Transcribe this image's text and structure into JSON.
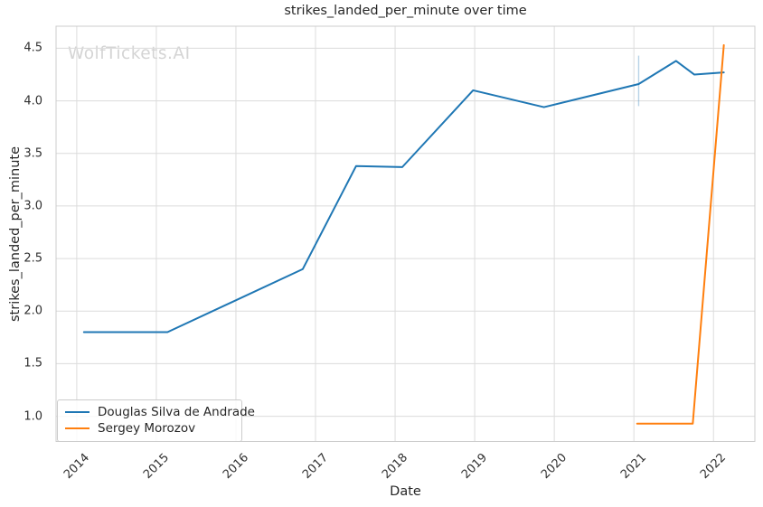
{
  "title": "strikes_landed_per_minute over time",
  "watermark": "WolfTickets.AI",
  "chart_data": {
    "type": "line",
    "title": "strikes_landed_per_minute over time",
    "xlabel": "Date",
    "ylabel": "strikes_landed_per_minute",
    "xlim": [
      2013.74,
      2022.52
    ],
    "ylim": [
      0.76,
      4.71
    ],
    "x_ticks": [
      2014,
      2015,
      2016,
      2017,
      2018,
      2019,
      2020,
      2021,
      2022
    ],
    "y_ticks": [
      1.0,
      1.5,
      2.0,
      2.5,
      3.0,
      3.5,
      4.0,
      4.5
    ],
    "grid": true,
    "background": "#ffffff",
    "grid_color": "#dcdcdc",
    "spine_color": "#cccccc",
    "legend_position": "lower left",
    "series": [
      {
        "name": "Douglas Silva de Andrade",
        "color": "#1f77b4",
        "x": [
          2014.09,
          2015.14,
          2016.84,
          2017.51,
          2018.09,
          2018.98,
          2019.87,
          2021.06,
          2021.53,
          2021.76,
          2022.13
        ],
        "y": [
          1.8,
          1.8,
          2.4,
          3.38,
          3.37,
          4.1,
          3.94,
          4.16,
          4.38,
          4.25,
          4.27
        ]
      },
      {
        "name": "Sergey Morozov",
        "color": "#ff7f0e",
        "x": [
          2021.04,
          2021.74,
          2022.13
        ],
        "y": [
          0.93,
          0.93,
          4.53
        ]
      }
    ],
    "error_bar": {
      "series": "Douglas Silva de Andrade",
      "x": 2021.06,
      "y_min": 3.95,
      "y_max": 4.43,
      "color": "rgba(31,119,180,0.32)"
    }
  }
}
